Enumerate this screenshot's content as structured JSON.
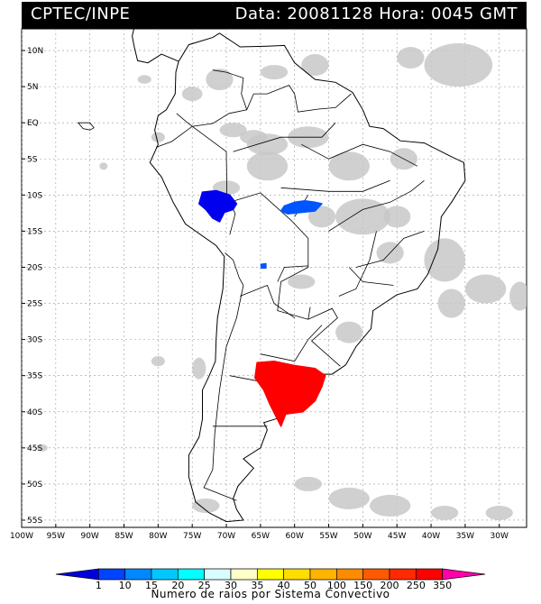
{
  "header": {
    "source": "CPTEC/INPE",
    "datetime": "Data: 20081128  Hora: 0045 GMT"
  },
  "map": {
    "lat_ticks": [
      "10N",
      "5N",
      "EQ",
      "5S",
      "10S",
      "15S",
      "20S",
      "25S",
      "30S",
      "35S",
      "40S",
      "45S",
      "50S",
      "55S"
    ],
    "lon_ticks": [
      "100W",
      "95W",
      "90W",
      "85W",
      "80W",
      "75W",
      "70W",
      "65W",
      "60W",
      "55W",
      "50W",
      "45W",
      "40W",
      "35W",
      "30W"
    ],
    "lat_range": [
      -56,
      13
    ],
    "lon_range": [
      -100,
      -26
    ],
    "grid": true
  },
  "convective_systems": [
    {
      "id": "peru-bolivia-west",
      "lon": -71.5,
      "lat": -11.5,
      "color": "#0000ee",
      "class": "1-10"
    },
    {
      "id": "brazil-mato-grosso",
      "lon": -58.5,
      "lat": -12.0,
      "color": "#0055ff",
      "class": "10-15"
    },
    {
      "id": "bolivia-small-1",
      "lon": -64.5,
      "lat": -19.8,
      "color": "#0055ff",
      "class": "10-15"
    },
    {
      "id": "argentina-uruguay",
      "lon": -60.0,
      "lat": -36.5,
      "color": "#ff0000",
      "class": "350"
    }
  ],
  "colorbar": {
    "labels": [
      "1",
      "10",
      "15",
      "20",
      "25",
      "30",
      "35",
      "40",
      "50",
      "100",
      "150",
      "200",
      "250",
      "350"
    ],
    "colors": [
      "#0000dd",
      "#0044ff",
      "#0088ff",
      "#00c8ff",
      "#00ffff",
      "#d8ffff",
      "#ffffc8",
      "#ffff00",
      "#ffdd00",
      "#ffb400",
      "#ff8c00",
      "#ff5a00",
      "#ff2a00",
      "#ff0000",
      "#ff00aa"
    ],
    "title": "Numero de raios por Sistema Convectivo"
  }
}
